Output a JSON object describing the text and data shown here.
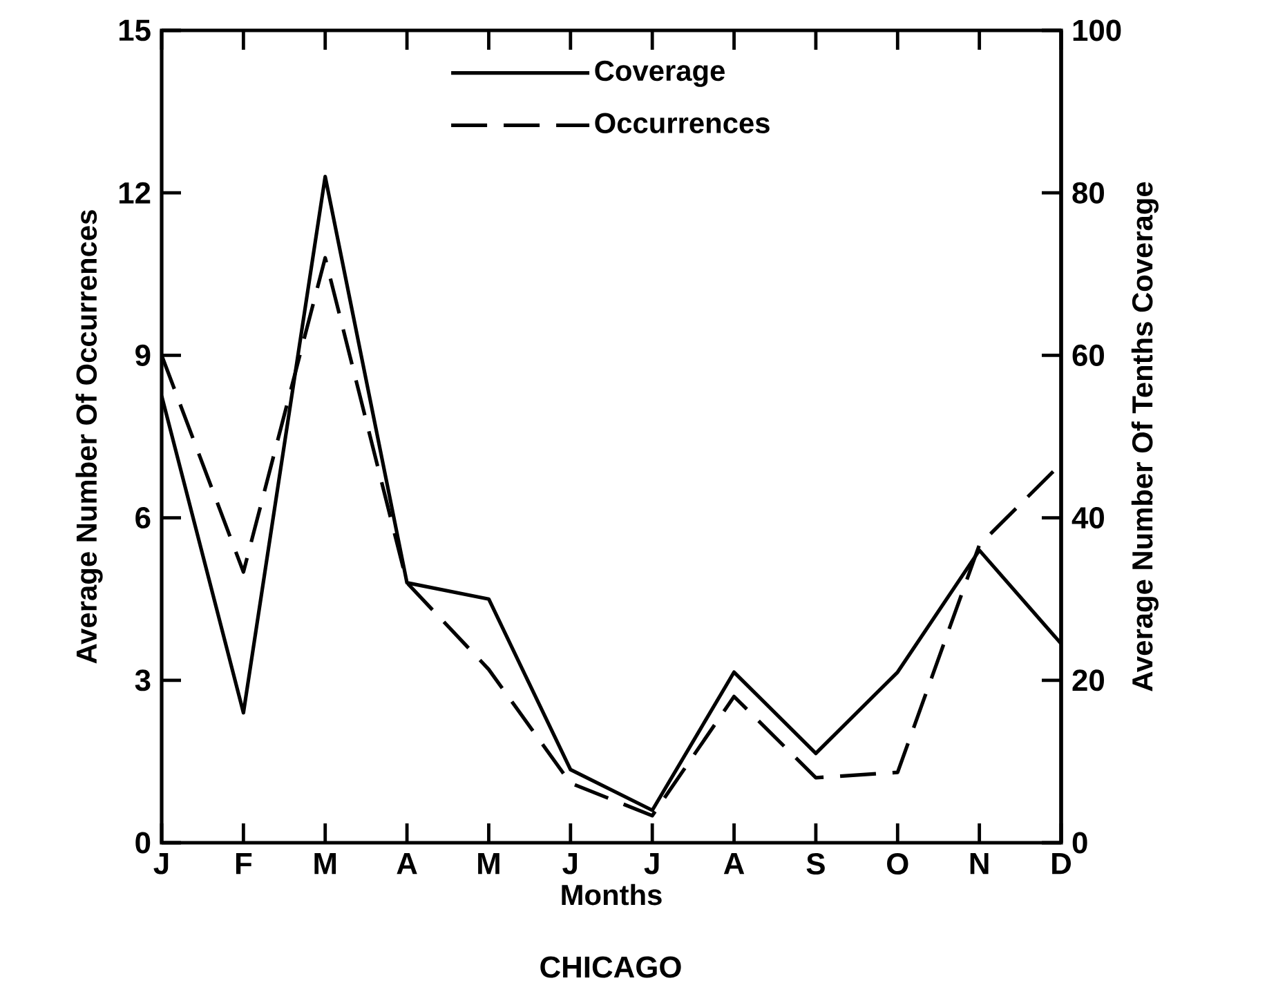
{
  "chart_data": {
    "type": "line",
    "title": "CHICAGO",
    "xlabel": "Months",
    "ylabel": "Average Number Of Occurrences",
    "y2label": "Average Number Of Tenths Coverage",
    "categories": [
      "J",
      "F",
      "M",
      "A",
      "M",
      "J",
      "J",
      "A",
      "S",
      "O",
      "N",
      "D"
    ],
    "series": [
      {
        "name": "Coverage",
        "color": "#000000",
        "axis": "y2",
        "line_style": "solid",
        "values": [
          55,
          16,
          82,
          32,
          30,
          9,
          4,
          21,
          11,
          21,
          36,
          24.5
        ]
      },
      {
        "name": "Occurrences",
        "color": "#000000",
        "line_style": "dashed",
        "values": [
          9.0,
          5.0,
          10.8,
          4.8,
          3.2,
          1.1,
          0.5,
          2.7,
          1.2,
          1.3,
          5.5,
          7.0
        ]
      }
    ],
    "ylim": [
      0,
      15
    ],
    "yticks": [
      0,
      3,
      6,
      9,
      12,
      15
    ],
    "y2lim": [
      0,
      100
    ],
    "y2ticks": [
      0,
      20,
      40,
      60,
      80,
      100
    ],
    "legend": "top",
    "marker": "none"
  }
}
